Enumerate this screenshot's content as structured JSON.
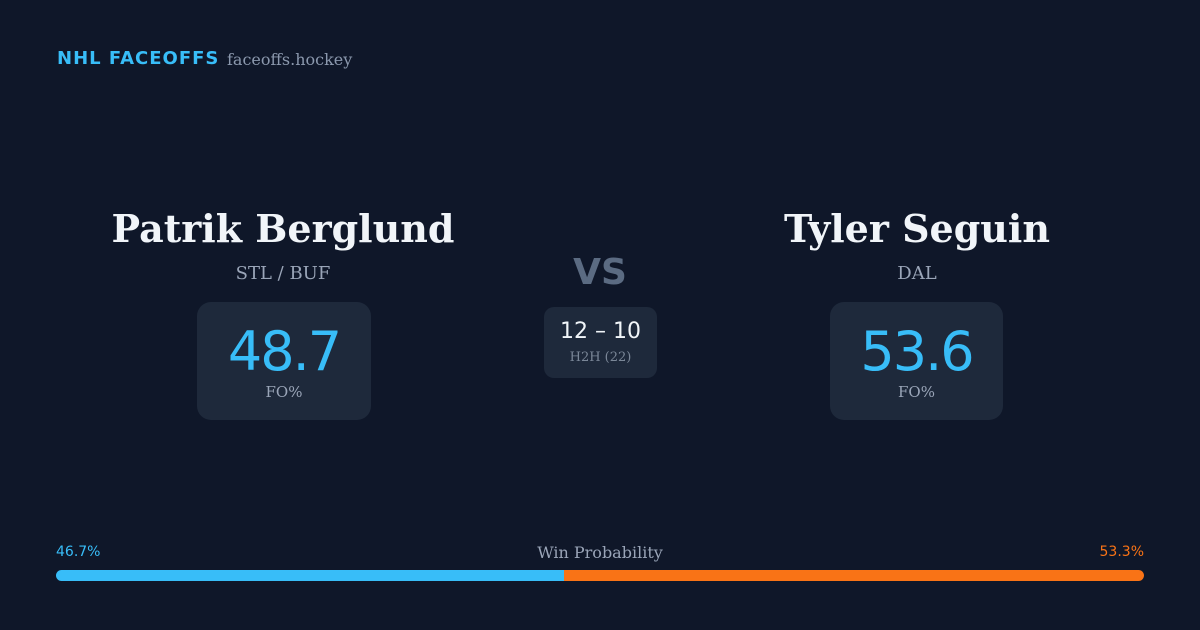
{
  "header": {
    "brand": "NHL FACEOFFS",
    "site": "faceoffs.hockey"
  },
  "players": [
    {
      "name": "Patrik Berglund",
      "team": "STL / BUF",
      "fo": "48.7",
      "fo_label": "FO%"
    },
    {
      "name": "Tyler Seguin",
      "team": "DAL",
      "fo": "53.6",
      "fo_label": "FO%"
    }
  ],
  "vs": "VS",
  "h2h": {
    "score": "12 – 10",
    "label": "H2H (22)"
  },
  "win_probability": {
    "title": "Win Probability",
    "values": [
      46.7,
      53.3
    ],
    "value_labels": [
      "46.7%",
      "53.3%"
    ],
    "colors": [
      "#38bdf8",
      "#f97316"
    ]
  }
}
